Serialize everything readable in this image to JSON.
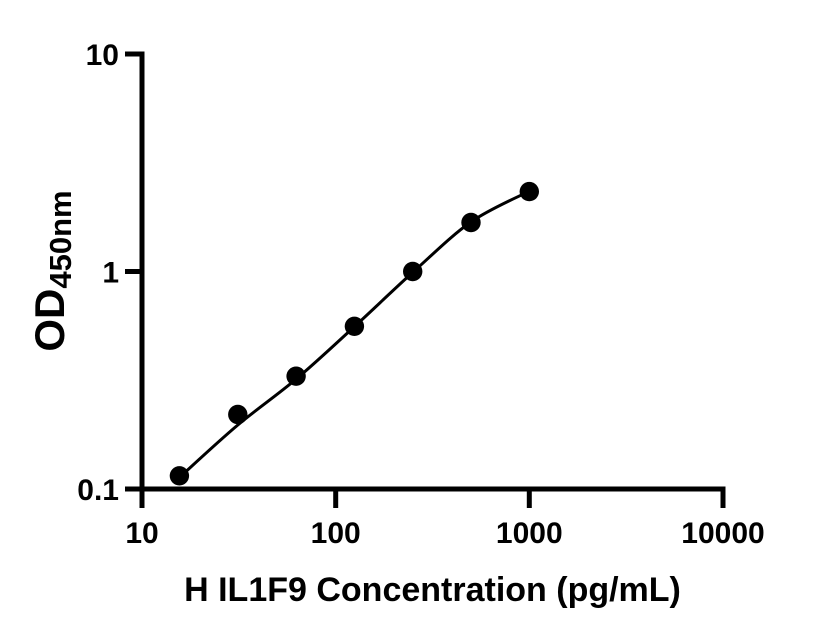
{
  "figure": {
    "background_color": "#ffffff",
    "ink_color": "#000000"
  },
  "chart_data": {
    "type": "scatter",
    "title": "",
    "xlabel": "H IL1F9 Concentration (pg/mL)",
    "ylabel": "OD450nm",
    "ylabel_main": "OD",
    "ylabel_sub": "450nm",
    "x_scale": "log",
    "y_scale": "log",
    "xlim": [
      10,
      10000
    ],
    "ylim": [
      0.1,
      10
    ],
    "x_ticks": [
      10,
      100,
      1000,
      10000
    ],
    "x_tick_labels": [
      "10",
      "100",
      "1000",
      "10000"
    ],
    "y_ticks": [
      0.1,
      1,
      10
    ],
    "y_tick_labels": [
      "0.1",
      "1",
      "10"
    ],
    "grid": false,
    "legend": null,
    "marker": "filled-circle",
    "marker_color": "#000000",
    "line_color": "#000000",
    "points": [
      {
        "x": 15.6,
        "y": 0.115
      },
      {
        "x": 31.25,
        "y": 0.22
      },
      {
        "x": 62.5,
        "y": 0.33
      },
      {
        "x": 125,
        "y": 0.56
      },
      {
        "x": 250,
        "y": 1.0
      },
      {
        "x": 500,
        "y": 1.68
      },
      {
        "x": 1000,
        "y": 2.33
      }
    ],
    "fit_curve": [
      {
        "x": 15.6,
        "y": 0.113
      },
      {
        "x": 31.25,
        "y": 0.197
      },
      {
        "x": 62.5,
        "y": 0.32
      },
      {
        "x": 125,
        "y": 0.558
      },
      {
        "x": 250,
        "y": 0.99
      },
      {
        "x": 500,
        "y": 1.69
      },
      {
        "x": 1000,
        "y": 2.34
      }
    ]
  }
}
